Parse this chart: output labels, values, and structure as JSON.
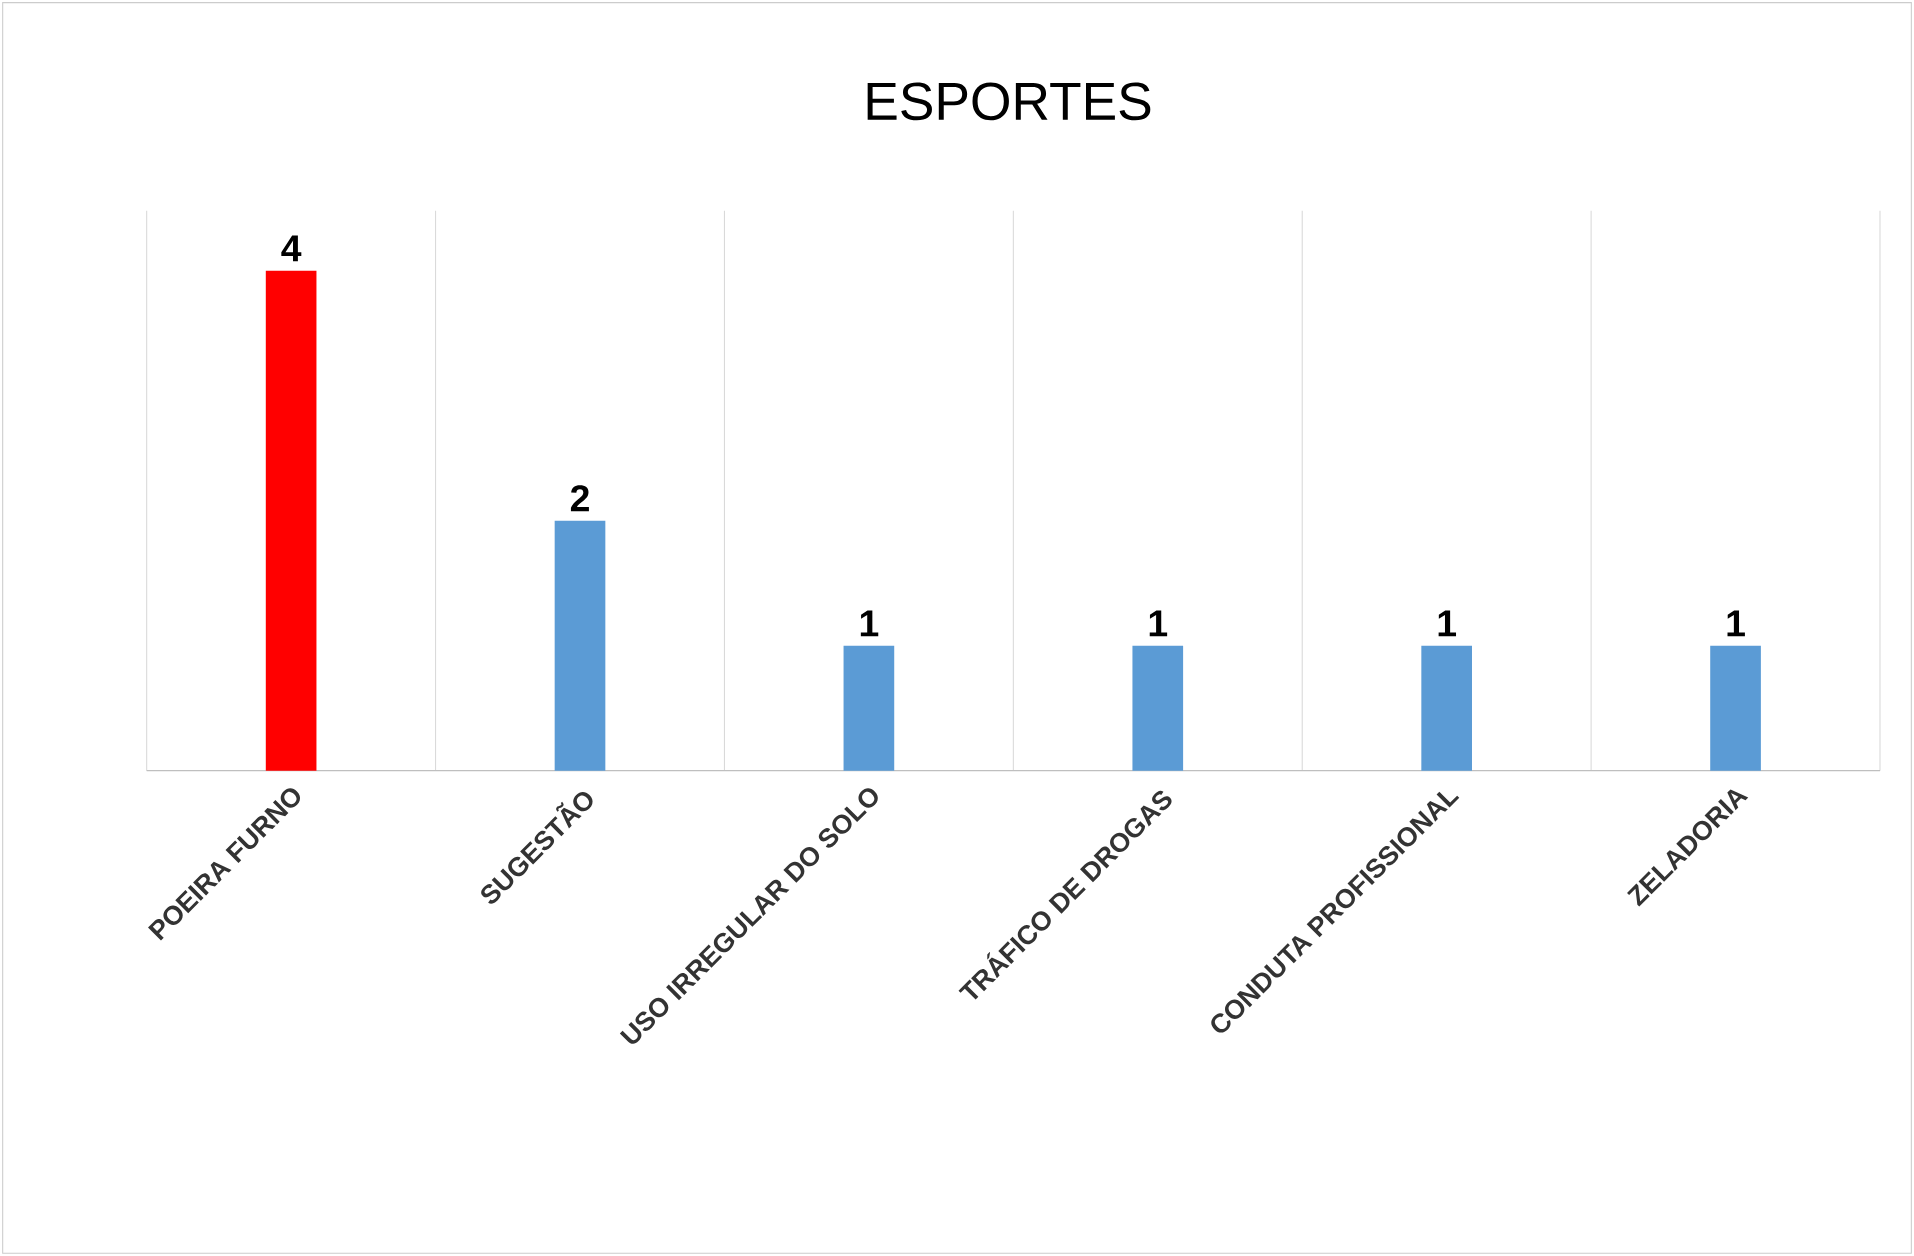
{
  "chart_data": {
    "type": "bar",
    "title": "ESPORTES",
    "categories": [
      "POEIRA FURNO",
      "SUGESTÃO",
      "USO IRREGULAR DO SOLO",
      "TRÁFICO DE DROGAS",
      "CONDUTA PROFISSIONAL",
      "ZELADORIA"
    ],
    "values": [
      4,
      2,
      1,
      1,
      1,
      1
    ],
    "colors": [
      "#ff0000",
      "#5b9bd5",
      "#5b9bd5",
      "#5b9bd5",
      "#5b9bd5",
      "#5b9bd5"
    ],
    "data_labels": true,
    "grid": "x"
  }
}
